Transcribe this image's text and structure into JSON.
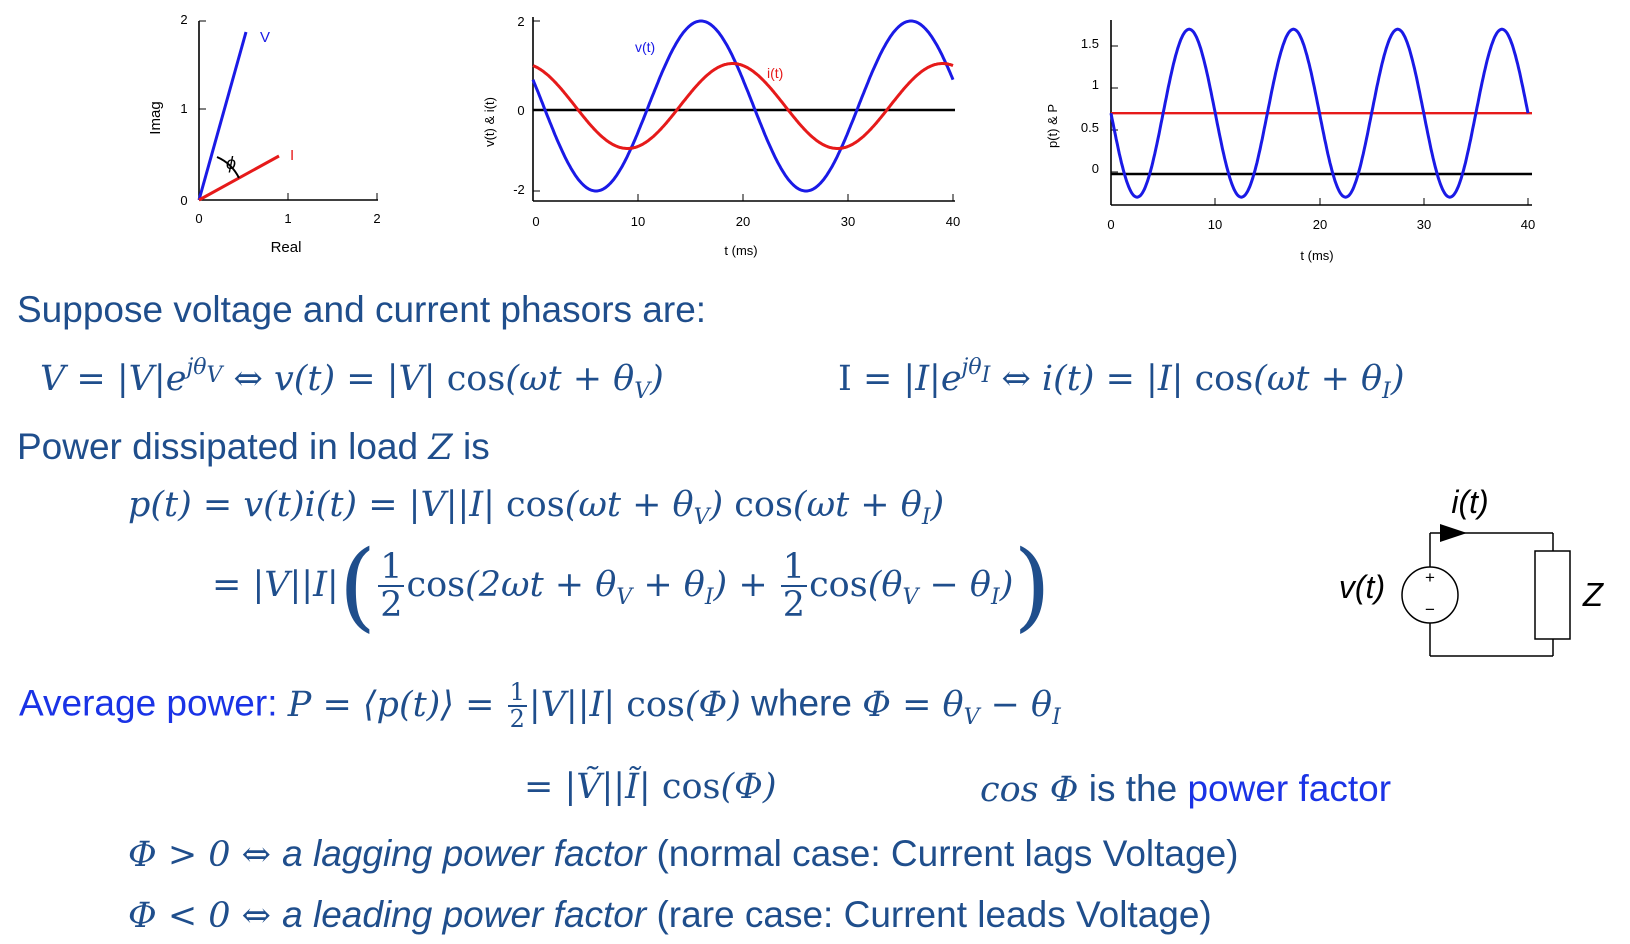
{
  "phasor_chart": {
    "xlabel": "Real",
    "ylabel": "Imag",
    "x_ticks": [
      "0",
      "1",
      "2"
    ],
    "y_ticks": [
      "0",
      "1",
      "2"
    ],
    "labels": {
      "v": "V",
      "i": "I",
      "angle": "ϕ"
    },
    "colors": {
      "v": "#1a1ae6",
      "i": "#e61a1a"
    }
  },
  "vi_chart": {
    "xlabel": "t (ms)",
    "ylabel": "v(t)  & i(t)",
    "x_ticks": [
      "0",
      "10",
      "20",
      "30",
      "40"
    ],
    "y_ticks": [
      "2",
      "0",
      "-2"
    ],
    "labels": {
      "v": "v(t)",
      "i": "i(t)"
    }
  },
  "power_chart": {
    "xlabel": "t (ms)",
    "ylabel": "p(t)  & P",
    "x_ticks": [
      "0",
      "10",
      "20",
      "30",
      "40"
    ],
    "y_ticks": [
      "1.5",
      "1",
      "0.5",
      "0"
    ]
  },
  "chart_data": [
    {
      "type": "line",
      "xlabel": "Real",
      "ylabel": "Imag",
      "xlim": [
        0,
        2
      ],
      "ylim": [
        0,
        2
      ],
      "series": [
        {
          "name": "V",
          "x": [
            0,
            0.53
          ],
          "y": [
            0,
            1.9
          ]
        },
        {
          "name": "I",
          "x": [
            0,
            0.9
          ],
          "y": [
            0,
            0.5
          ]
        }
      ]
    },
    {
      "type": "line",
      "xlabel": "t (ms)",
      "ylabel": "v(t)  & i(t)",
      "xlim": [
        0,
        40
      ],
      "ylim": [
        -2.3,
        2.3
      ],
      "series": [
        {
          "name": "v(t)",
          "amplitude": 2,
          "period_ms": 20,
          "peak_at_ms": 16
        },
        {
          "name": "i(t)",
          "amplitude": 1,
          "period_ms": 20,
          "peak_at_ms": 19
        }
      ]
    },
    {
      "type": "line",
      "xlabel": "t (ms)",
      "ylabel": "p(t)  & P",
      "xlim": [
        0,
        40
      ],
      "ylim": [
        -0.4,
        1.85
      ],
      "series": [
        {
          "amplitude": 1.0,
          "mean": 0.7,
          "period_ms": 10,
          "peak_at_ms": 7.5
        },
        {
          "constant": 0.7
        }
      ]
    }
  ],
  "text": {
    "l1": "Suppose voltage and current phasors are:",
    "eq_v": {
      "lhs": "V = |V|e",
      "sup": "jθ",
      "supsub": "V",
      "mid": " ⇔ v(t) = |V| ",
      "cos": "cos",
      "arg": "(ωt + θ",
      "argsub": "V",
      "close": ")"
    },
    "eq_i": {
      "lhs": "I",
      "eq": " = |I|e",
      "sup": "jθ",
      "supsub": "I",
      "mid": " ⇔ i(t) = |I| ",
      "cos": "cos",
      "arg": "(ωt + θ",
      "argsub": "I",
      "close": ")"
    },
    "l3_pre": "Power dissipated in load ",
    "l3_z": "Z",
    "l3_post": " is",
    "pt": {
      "a": "p(t) = v(t)i(t) = |V||I| ",
      "cos1": "cos",
      "b": "(ωt + θ",
      "sub1": "V",
      "c": ") ",
      "cos2": "cos",
      "d": "(ωt + θ",
      "sub2": "I",
      "e": ")"
    },
    "pt2": {
      "a": "= |V||I|",
      "lp": "(",
      "num1": "1",
      "den1": "2",
      "cos1": "cos",
      "b": "(2ωt + θ",
      "sub1": "V",
      "c": " + θ",
      "sub2": "I",
      "d": ") + ",
      "num2": "1",
      "den2": "2",
      "cos2": "cos",
      "e": "(θ",
      "sub3": "V",
      "f": " − θ",
      "sub4": "I",
      "g": ")",
      "rp": ")"
    },
    "avg": {
      "label": "Average power: ",
      "a": "P = ⟨p(t)⟩ = ",
      "num": "1",
      "den": "2",
      "b": "|V||I| ",
      "cos": "cos",
      "c": "(Φ)",
      "where": " where ",
      "d": "Φ = θ",
      "sub1": "V",
      "e": " − θ",
      "sub2": "I"
    },
    "eq2": {
      "a": "= |Ṽ||Ĩ| ",
      "cos": "cos",
      "b": "(Φ)"
    },
    "pf": {
      "cos": "cos",
      "phi": " Φ",
      "mid": " is the ",
      "blue": "power factor"
    },
    "lag": {
      "a": "Φ",
      "b": " > 0 ⇔ ",
      "italic": "a lagging power factor",
      "rest": " (normal case: Current lags Voltage)"
    },
    "lead": {
      "a": "Φ",
      "b": " < 0 ⇔ ",
      "italic": "a leading power factor",
      "rest": " (rare case: Current leads Voltage)"
    }
  },
  "circuit": {
    "i_label": "i(t)",
    "v_label": "v(t)",
    "z_label": "Z",
    "plus": "+",
    "minus": "−"
  }
}
